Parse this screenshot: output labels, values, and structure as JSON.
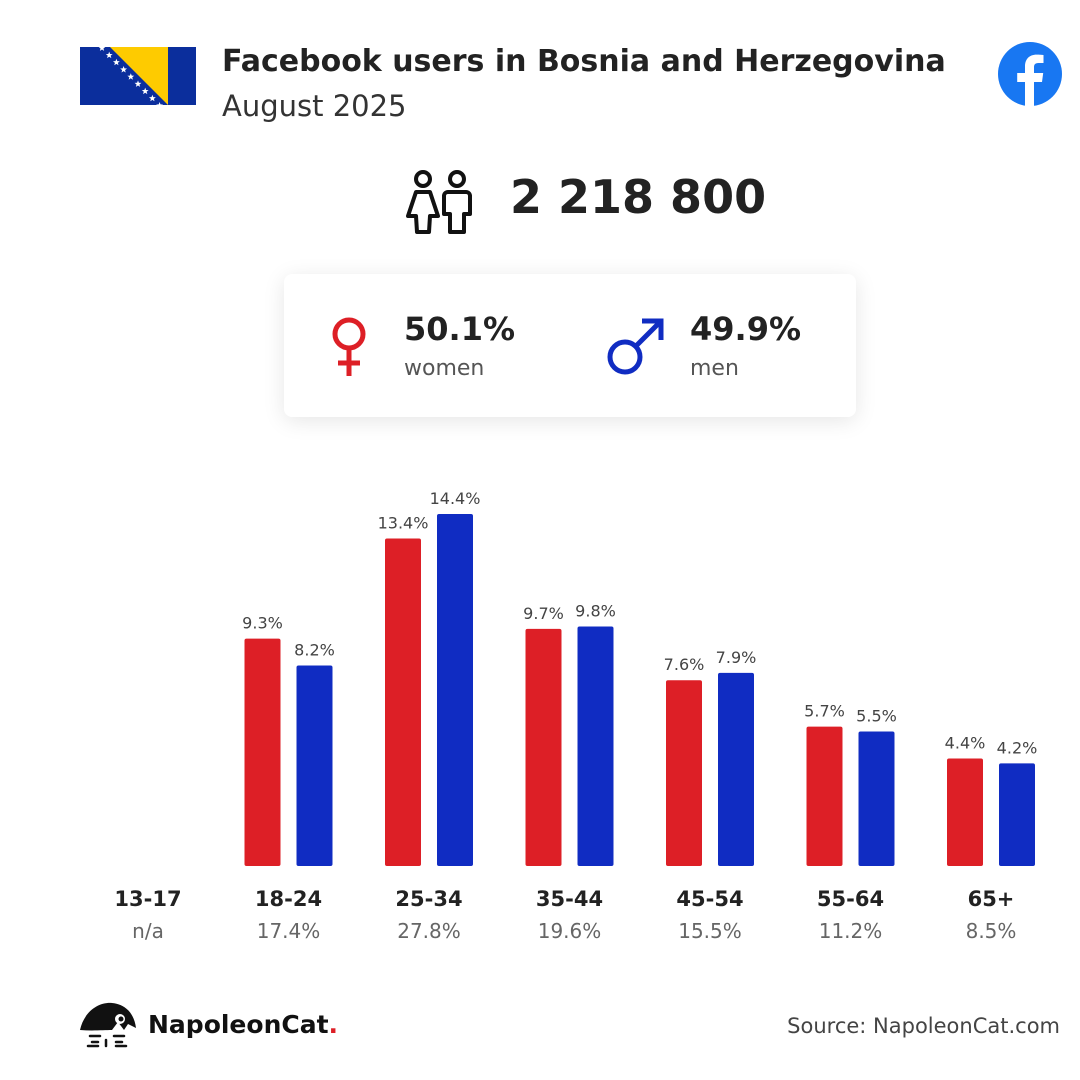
{
  "header": {
    "title": "Facebook users in Bosnia and Herzegovina",
    "subtitle": "August 2025",
    "flag_icon": "bosnia-flag",
    "platform_icon": "facebook-logo"
  },
  "total": {
    "icon": "people-icon",
    "value": "2 218 800"
  },
  "gender": {
    "women": {
      "percent": "50.1%",
      "label": "women",
      "icon": "female-symbol",
      "color": "#dd1f26"
    },
    "men": {
      "percent": "49.9%",
      "label": "men",
      "icon": "male-symbol",
      "color": "#102cc2"
    }
  },
  "chart_data": {
    "type": "bar",
    "categories": [
      "13-17",
      "18-24",
      "25-34",
      "35-44",
      "45-54",
      "55-64",
      "65+"
    ],
    "category_totals": [
      "n/a",
      "17.4%",
      "27.8%",
      "19.6%",
      "15.5%",
      "11.2%",
      "8.5%"
    ],
    "series": [
      {
        "color": "#dd1f26",
        "values": [
          null,
          9.3,
          13.4,
          9.7,
          7.6,
          5.7,
          4.4
        ],
        "labels": [
          "",
          "9.3%",
          "13.4%",
          "9.7%",
          "7.6%",
          "5.7%",
          "4.4%"
        ]
      },
      {
        "color": "#102cc2",
        "values": [
          null,
          8.2,
          14.4,
          9.8,
          7.9,
          5.5,
          4.2
        ],
        "labels": [
          "",
          "8.2%",
          "14.4%",
          "9.8%",
          "7.9%",
          "5.5%",
          "4.2%"
        ]
      }
    ],
    "ylim": [
      0,
      14.4
    ],
    "grid": false,
    "legend": "none"
  },
  "footer": {
    "brand": "NapoleonCat",
    "brand_dot": ".",
    "source": "Source: NapoleonCat.com"
  }
}
